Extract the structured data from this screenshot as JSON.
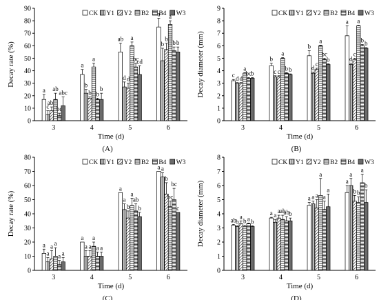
{
  "figure": {
    "series_names": [
      "CK",
      "Y1",
      "Y2",
      "B2",
      "B4",
      "W3"
    ],
    "styles": [
      {
        "fill": "#ffffff",
        "pattern": "none"
      },
      {
        "fill": "#ffffff",
        "pattern": "vlines"
      },
      {
        "fill": "#ffffff",
        "pattern": "diag"
      },
      {
        "fill": "#ffffff",
        "pattern": "hlines"
      },
      {
        "fill": "#ffffff",
        "pattern": "dense-h"
      },
      {
        "fill": "#6b6b6b",
        "pattern": "none"
      }
    ]
  },
  "chart_data": [
    {
      "panel_label": "(A)",
      "type": "bar",
      "categories": [
        "3",
        "4",
        "5",
        "6"
      ],
      "xlabel": "Time (d)",
      "ylabel": "Decay rate (%)",
      "ylim": [
        0,
        90
      ],
      "yticks": [
        0,
        10,
        20,
        30,
        40,
        50,
        60,
        70,
        80,
        90
      ],
      "legend": "top-right",
      "series": [
        {
          "name": "CK",
          "values": [
            17,
            37,
            55,
            75
          ],
          "errors": [
            4,
            4,
            7,
            7
          ],
          "letters": [
            "a",
            "a",
            "ab",
            "a"
          ]
        },
        {
          "name": "Y1",
          "values": [
            5,
            22,
            27,
            48
          ],
          "errors": [
            3,
            3,
            4,
            10
          ],
          "letters": [
            "c",
            "b",
            "d",
            "b"
          ]
        },
        {
          "name": "Y2",
          "values": [
            8,
            18,
            26,
            57
          ],
          "errors": [
            3,
            1,
            4,
            5
          ],
          "letters": [
            "abc",
            "b",
            "d",
            "b"
          ]
        },
        {
          "name": "B2",
          "values": [
            17,
            43,
            60,
            77
          ],
          "errors": [
            5,
            3,
            3,
            3
          ],
          "letters": [
            "ab",
            "a",
            "a",
            "a"
          ]
        },
        {
          "name": "B4",
          "values": [
            4,
            17,
            43,
            56
          ],
          "errors": [
            2,
            1,
            3,
            3
          ],
          "letters": [
            "bc",
            "b",
            "bc",
            "b"
          ]
        },
        {
          "name": "W3",
          "values": [
            12,
            17,
            37,
            55
          ],
          "errors": [
            7,
            5,
            7,
            4
          ],
          "letters": [
            "abc",
            "b",
            "cd",
            "b"
          ]
        }
      ]
    },
    {
      "panel_label": "(B)",
      "type": "bar",
      "categories": [
        "3",
        "4",
        "5",
        "6"
      ],
      "xlabel": "Time (d)",
      "ylabel": "Decay diameter (mm)",
      "ylim": [
        0,
        9
      ],
      "yticks": [
        0,
        1,
        2,
        3,
        4,
        5,
        6,
        7,
        8,
        9
      ],
      "legend": "top-right",
      "series": [
        {
          "name": "CK",
          "values": [
            3.2,
            4.4,
            5.2,
            6.8
          ],
          "errors": [
            0.1,
            0.2,
            0.4,
            0.8
          ],
          "letters": [
            "c",
            "b",
            "b",
            "a"
          ]
        },
        {
          "name": "Y1",
          "values": [
            3.0,
            3.5,
            3.8,
            4.5
          ],
          "errors": [
            0.05,
            0.1,
            0.1,
            0.1
          ],
          "letters": [
            "d",
            "c",
            "d",
            "d"
          ]
        },
        {
          "name": "Y2",
          "values": [
            3.0,
            3.5,
            4.1,
            4.9
          ],
          "errors": [
            0.05,
            0.1,
            0.1,
            0.1
          ],
          "letters": [
            "d",
            "c",
            "c",
            "c"
          ]
        },
        {
          "name": "B2",
          "values": [
            3.8,
            5.0,
            6.0,
            7.6
          ],
          "errors": [
            0.05,
            0.05,
            0.05,
            0.05
          ],
          "letters": [
            "a",
            "a",
            "a",
            "a"
          ]
        },
        {
          "name": "B4",
          "values": [
            3.4,
            3.8,
            4.9,
            6.0
          ],
          "errors": [
            0.05,
            0.05,
            0.1,
            0.1
          ],
          "letters": [
            "bc",
            "b",
            "bc",
            "b"
          ]
        },
        {
          "name": "W3",
          "values": [
            3.4,
            3.7,
            4.5,
            5.8
          ],
          "errors": [
            0.05,
            0.05,
            0.05,
            0.05
          ],
          "letters": [
            "b",
            "b",
            "b",
            "b"
          ]
        }
      ]
    },
    {
      "panel_label": "(C)",
      "type": "bar",
      "categories": [
        "3",
        "4",
        "5",
        "6"
      ],
      "xlabel": "Time (d)",
      "ylabel": "Decay rate (%)",
      "ylim": [
        0,
        80
      ],
      "yticks": [
        0,
        10,
        20,
        30,
        40,
        50,
        60,
        70,
        80
      ],
      "legend": "top-right",
      "series": [
        {
          "name": "CK",
          "values": [
            12,
            20,
            55,
            70
          ],
          "errors": [
            3,
            0,
            0,
            0
          ],
          "letters": [
            "a",
            "a",
            "a",
            "a"
          ]
        },
        {
          "name": "Y1",
          "values": [
            6,
            10,
            43,
            66
          ],
          "errors": [
            3,
            4,
            4,
            3
          ],
          "letters": [
            "a",
            "a",
            "a",
            "a"
          ]
        },
        {
          "name": "Y2",
          "values": [
            8,
            10,
            37,
            54
          ],
          "errors": [
            6,
            4,
            5,
            8
          ],
          "letters": [
            "a",
            "a",
            "b",
            "b"
          ]
        },
        {
          "name": "B2",
          "values": [
            10,
            17,
            46,
            45
          ],
          "errors": [
            6,
            3,
            5,
            4
          ],
          "letters": [
            "a",
            "a",
            "a",
            "bc"
          ]
        },
        {
          "name": "B4",
          "values": [
            4,
            10,
            42,
            50
          ],
          "errors": [
            3,
            3,
            5,
            8
          ],
          "letters": [
            "a",
            "a",
            "ab",
            "bc"
          ]
        },
        {
          "name": "W3",
          "values": [
            6,
            10,
            38,
            41
          ],
          "errors": [
            3,
            3,
            3,
            0
          ],
          "letters": [
            "a",
            "a",
            "b",
            "c"
          ]
        }
      ]
    },
    {
      "panel_label": "(D)",
      "type": "bar",
      "categories": [
        "3",
        "4",
        "5",
        "6"
      ],
      "xlabel": "Time (d)",
      "ylabel": "Decay diameter (mm)",
      "ylim": [
        0,
        8
      ],
      "yticks": [
        0,
        1,
        2,
        3,
        4,
        5,
        6,
        7,
        8
      ],
      "legend": "top-right",
      "series": [
        {
          "name": "CK",
          "values": [
            3.2,
            3.7,
            4.6,
            5.5
          ],
          "errors": [
            0.05,
            0.05,
            0.2,
            0.5
          ],
          "letters": [
            "ab",
            "a",
            "a",
            "a"
          ]
        },
        {
          "name": "Y1",
          "values": [
            3.1,
            3.4,
            4.7,
            6.0
          ],
          "errors": [
            0.05,
            0.2,
            0.2,
            0.5
          ],
          "letters": [
            "b",
            "a",
            "a",
            "a"
          ]
        },
        {
          "name": "Y2",
          "values": [
            3.3,
            3.7,
            4.4,
            4.9
          ],
          "errors": [
            0.2,
            0.2,
            0.6,
            0.4
          ],
          "letters": [
            "a",
            "a",
            "a",
            "b"
          ]
        },
        {
          "name": "B2",
          "values": [
            3.1,
            3.6,
            5.3,
            4.8
          ],
          "errors": [
            0.1,
            0.3,
            1.2,
            0.4
          ],
          "letters": [
            "b",
            "ab",
            "a",
            "b"
          ]
        },
        {
          "name": "B4",
          "values": [
            3.3,
            3.5,
            4.3,
            6.2
          ],
          "errors": [
            0.05,
            0.3,
            0.6,
            0.6
          ],
          "letters": [
            "a",
            "ab",
            "a",
            "a"
          ]
        },
        {
          "name": "W3",
          "values": [
            3.1,
            3.5,
            4.5,
            4.8
          ],
          "errors": [
            0.05,
            0.2,
            0.9,
            0.9
          ],
          "letters": [
            "b",
            "b",
            "a",
            "b"
          ]
        }
      ]
    }
  ]
}
